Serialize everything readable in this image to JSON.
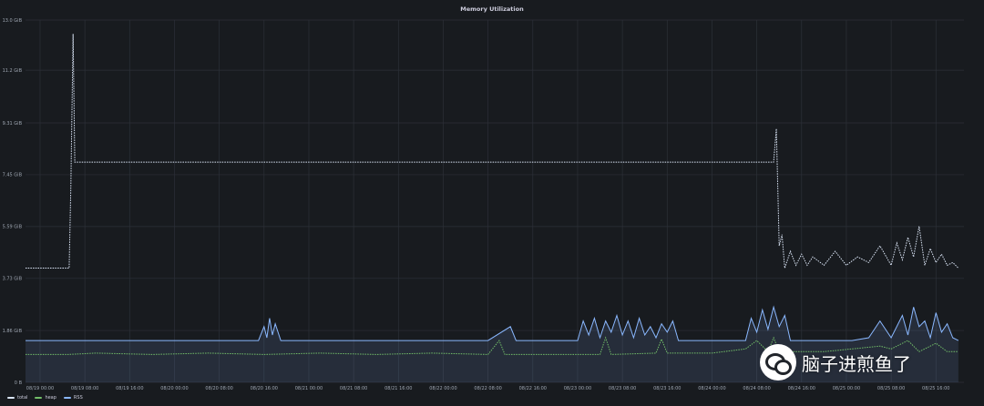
{
  "panel": {
    "bg_color": "#181b1f",
    "text_color": "#ccccdc",
    "grid_color": "#2c3038"
  },
  "watermark": {
    "text": "脑子进煎鱼了",
    "icon": "wechat-logo-icon"
  },
  "chart_data": {
    "type": "line",
    "title": "Memory Utilization",
    "xlabel": "",
    "ylabel": "",
    "grid": true,
    "legend_placement": "bottom-left",
    "y_unit": "GiB",
    "ylim": [
      0,
      13.0
    ],
    "y_ticks": [
      "0 B",
      "1.86 GiB",
      "3.73 GiB",
      "5.59 GiB",
      "7.45 GiB",
      "9.31 GiB",
      "11.2 GiB",
      "13.0 GiB"
    ],
    "y_tick_values": [
      0,
      1.86,
      3.73,
      5.59,
      7.45,
      9.31,
      11.2,
      13.0
    ],
    "x_ticks": [
      "08/19 00:00",
      "08/19 08:00",
      "08/19 16:00",
      "08/20 00:00",
      "08/20 08:00",
      "08/20 16:00",
      "08/21 00:00",
      "08/21 08:00",
      "08/21 16:00",
      "08/22 00:00",
      "08/22 08:00",
      "08/22 16:00",
      "08/23 00:00",
      "08/23 08:00",
      "08/23 16:00",
      "08/24 00:00",
      "08/24 08:00",
      "08/24 16:00",
      "08/25 00:00",
      "08/25 08:00",
      "08/25 16:00"
    ],
    "x_tick_hours": [
      0,
      8,
      16,
      24,
      32,
      40,
      48,
      56,
      64,
      72,
      80,
      88,
      96,
      104,
      112,
      120,
      128,
      136,
      144,
      152,
      160
    ],
    "xlim_hours": [
      -2.6,
      165.0
    ],
    "series": [
      {
        "name": "total",
        "color": "#dbe6f7",
        "style": "dotted",
        "x": [
          -2.6,
          5.0,
          5.2,
          5.5,
          5.9,
          6.2,
          10.0,
          20.0,
          40.0,
          60.0,
          80.0,
          100.0,
          120.0,
          131.0,
          131.5,
          132.0,
          132.5,
          133.0,
          134.0,
          135.0,
          136.0,
          137.0,
          138.0,
          140.0,
          142.0,
          144.0,
          146.0,
          148.0,
          150.0,
          152.0,
          153.0,
          154.0,
          155.0,
          156.0,
          157.0,
          158.0,
          159.0,
          160.0,
          161.0,
          162.0,
          163.0,
          164.0
        ],
        "y": [
          4.1,
          4.1,
          4.1,
          7.1,
          12.5,
          7.9,
          7.9,
          7.9,
          7.9,
          7.9,
          7.9,
          7.9,
          7.9,
          7.9,
          9.1,
          4.9,
          5.3,
          4.1,
          4.7,
          4.2,
          4.6,
          4.2,
          4.5,
          4.2,
          4.7,
          4.2,
          4.5,
          4.3,
          4.9,
          4.2,
          5.0,
          4.4,
          5.2,
          4.5,
          5.6,
          4.2,
          4.8,
          4.3,
          4.6,
          4.2,
          4.3,
          4.1
        ]
      },
      {
        "name": "heap",
        "color": "#73bf69",
        "style": "dotted",
        "x": [
          -2.6,
          5.0,
          10.0,
          20.0,
          30.0,
          40.0,
          50.0,
          60.0,
          70.0,
          80.0,
          82.0,
          83.0,
          84.0,
          96.0,
          100.0,
          101.0,
          102.0,
          110.0,
          111.0,
          112.0,
          120.0,
          126.0,
          128.0,
          130.0,
          131.0,
          132.0,
          140.0,
          145.0,
          150.0,
          152.0,
          155.0,
          157.0,
          160.0,
          162.0,
          164.0
        ],
        "y": [
          1.0,
          1.0,
          1.05,
          1.0,
          1.05,
          1.0,
          1.05,
          1.0,
          1.05,
          1.0,
          1.5,
          1.0,
          1.0,
          1.0,
          1.0,
          1.6,
          1.0,
          1.05,
          1.55,
          1.05,
          1.05,
          1.2,
          1.5,
          1.1,
          1.6,
          1.1,
          1.1,
          1.2,
          1.3,
          1.2,
          1.5,
          1.1,
          1.4,
          1.1,
          1.1
        ]
      },
      {
        "name": "RSS",
        "color": "#8ab8ff",
        "style": "solid",
        "fill": true,
        "x": [
          -2.6,
          5.0,
          10.0,
          20.0,
          30.0,
          39.0,
          40.0,
          40.5,
          41.0,
          41.5,
          42.0,
          43.0,
          50.0,
          60.0,
          70.0,
          80.0,
          84.0,
          85.0,
          86.0,
          96.0,
          97.0,
          98.0,
          99.0,
          100.0,
          101.0,
          102.0,
          103.0,
          104.0,
          105.0,
          106.0,
          107.0,
          108.0,
          109.0,
          110.0,
          111.0,
          112.0,
          113.0,
          114.0,
          120.0,
          126.0,
          127.0,
          128.0,
          129.0,
          130.0,
          131.0,
          132.0,
          133.0,
          134.0,
          140.0,
          145.0,
          148.0,
          150.0,
          152.0,
          154.0,
          155.0,
          156.0,
          157.0,
          158.0,
          159.0,
          160.0,
          161.0,
          162.0,
          163.0,
          164.0
        ],
        "y": [
          1.5,
          1.5,
          1.5,
          1.5,
          1.5,
          1.5,
          2.0,
          1.6,
          2.3,
          1.7,
          2.1,
          1.5,
          1.5,
          1.5,
          1.5,
          1.5,
          2.0,
          1.5,
          1.5,
          1.5,
          2.2,
          1.7,
          2.3,
          1.6,
          2.2,
          1.8,
          2.4,
          1.7,
          2.2,
          1.6,
          2.3,
          1.7,
          2.0,
          1.6,
          2.1,
          1.8,
          2.2,
          1.5,
          1.5,
          1.5,
          2.3,
          1.8,
          2.6,
          1.9,
          2.7,
          2.0,
          2.4,
          1.5,
          1.5,
          1.5,
          1.6,
          2.2,
          1.6,
          2.4,
          1.7,
          2.7,
          2.0,
          2.2,
          1.6,
          2.5,
          1.8,
          2.1,
          1.6,
          1.5
        ]
      }
    ]
  }
}
